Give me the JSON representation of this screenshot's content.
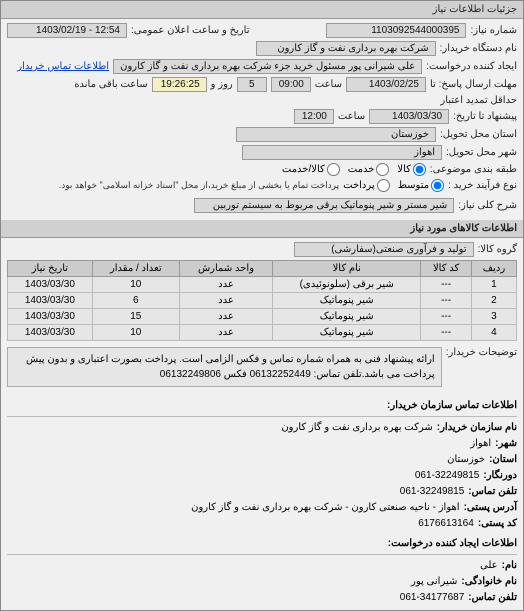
{
  "header": {
    "title": "جزئیات اطلاعات نیاز"
  },
  "fields": {
    "need_number_label": "شماره نیاز:",
    "need_number": "1103092544000395",
    "announce_label": "تاریخ و ساعت اعلان عمومی:",
    "announce_value": "12:54 - 1403/02/19",
    "buyer_org_label": "نام دستگاه خریدار:",
    "buyer_org": "شرکت بهره برداری نفت و گاز کارون",
    "requester_label": "ایجاد کننده درخواست:",
    "requester": "علی شیرانی پور مسئول خرید جزء شرکت بهره برداری نفت و گاز کارون",
    "buyer_contact_link": "اطلاعات تماس خریدار",
    "deadline_label_from": "مهلت ارسال پاسخ: تا",
    "deadline_date": "1403/02/25",
    "deadline_time_label": "ساعت",
    "deadline_time": "09:00",
    "remaining_days": "5",
    "remaining_days_label": "روز و",
    "remaining_time": "19:26:25",
    "remaining_time_label": "ساعت باقی مانده",
    "extend_label": "حداقل تمدید اعتبار",
    "extend_to_label": "پیشنهاد تا تاریخ:",
    "extend_date": "1403/03/30",
    "extend_time": "12:00",
    "delivery_province_label": "استان محل تحویل:",
    "delivery_province": "خوزستان",
    "delivery_city_label": "شهر محل تحویل:",
    "delivery_city": "اهواز",
    "group_type_label": "طبقه بندی موضوعی:",
    "group_radios": {
      "goods": "کالا",
      "service": "خدمت",
      "both": "کالا/خدمت"
    },
    "process_label": "نوع فرآیند خرید :",
    "process_radios": {
      "medium": "متوسط",
      "prepay": "پرداخت"
    },
    "process_note": "پرداخت تمام یا بخشی از مبلغ خرید،از محل \"اسناد خزانه اسلامی\" خواهد بود.",
    "need_title_label": "شرح کلی نیاز:",
    "need_title": "شیر مستر و شیر پنوماتیک برقی مربوط به سیستم توربین"
  },
  "goods_section": {
    "title": "اطلاعات کالاهای مورد نیاز",
    "goods_group_label": "گروه کالا:",
    "goods_group": "تولید و فرآوری صنعتی(سفارشی)"
  },
  "table": {
    "columns": [
      "ردیف",
      "کد کالا",
      "نام کالا",
      "واحد شمارش",
      "تعداد / مقدار",
      "تاریخ نیاز"
    ],
    "rows": [
      [
        "1",
        "---",
        "شیر برقی (سلونوئیدی)",
        "عدد",
        "10",
        "1403/03/30"
      ],
      [
        "2",
        "---",
        "شیر پنوماتیک",
        "عدد",
        "6",
        "1403/03/30"
      ],
      [
        "3",
        "---",
        "شیر پنوماتیک",
        "عدد",
        "15",
        "1403/03/30"
      ],
      [
        "4",
        "---",
        "شیر پنوماتیک",
        "عدد",
        "10",
        "1403/03/30"
      ]
    ]
  },
  "description": {
    "label": "توضیحات خریدار:",
    "text": "ارائه پیشنهاد فنی به همراه شماره تماس و فکس الزامی است. پرداخت بصورت اعتباری و بدون پیش پرداخت می باشد.تلفن تماس: 06132252449 فکس 06132249806"
  },
  "contact": {
    "heading": "اطلاعات تماس سازمان خریدار:",
    "org_label": "نام سازمان خریدار:",
    "org": "شرکت بهره برداری نفت و گاز کارون",
    "province_label": "شهر:",
    "province": "اهواز",
    "state_label": "استان:",
    "state": "خوزستان",
    "prefix_label": "دورنگار:",
    "prefix": "061-32249815",
    "phone_label": "تلفن تماس:",
    "phone": "061-32249815",
    "address_label": "آدرس پستی:",
    "address": "اهواز - ناحیه صنعتی کارون - شرکت بهره برداری نفت و گاز کارون",
    "postal_label": "کد پستی:",
    "postal": "6176613164",
    "creator_heading": "اطلاعات ایجاد کننده درخواست:",
    "name_label": "نام:",
    "name": "علی",
    "family_label": "نام خانوادگی:",
    "family": "شیرانی پور",
    "creator_phone_label": "تلفن تماس:",
    "creator_phone": "061-34177687"
  },
  "colors": {
    "panel_bg": "#f0f0f0",
    "header_bg": "#d0d0d0",
    "value_bg": "#d9d9d9",
    "border": "#999999",
    "link": "#0044cc"
  }
}
